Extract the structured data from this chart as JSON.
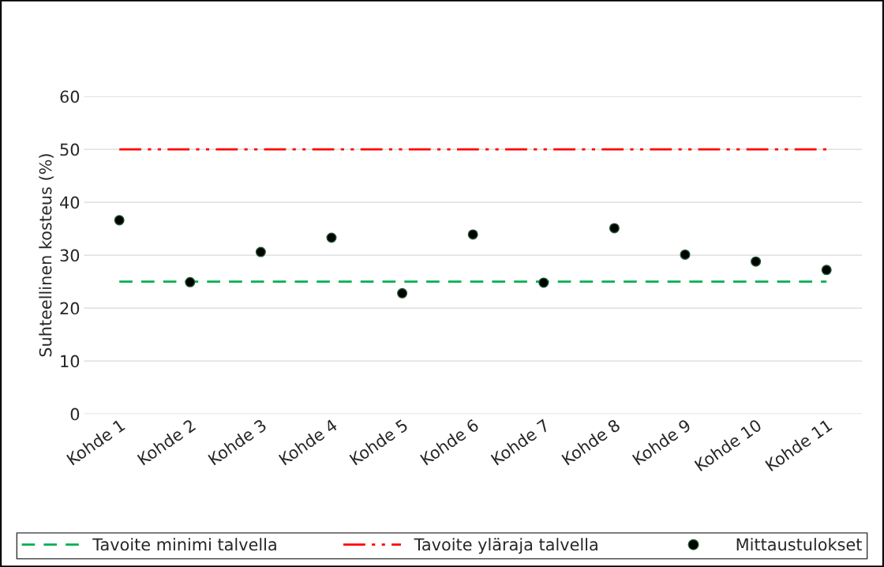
{
  "chart_data": {
    "type": "scatter",
    "ylabel": "Suhteellinen kosteus (%)",
    "categories": [
      "Kohde 1",
      "Kohde 2",
      "Kohde 3",
      "Kohde 4",
      "Kohde 5",
      "Kohde 6",
      "Kohde 7",
      "Kohde 8",
      "Kohde 9",
      "Kohde 10",
      "Kohde 11"
    ],
    "series": [
      {
        "name": "Tavoite minimi talvella",
        "type": "line",
        "color": "#00b050",
        "line_style": "dashed",
        "marker": "none",
        "values": [
          25,
          25,
          25,
          25,
          25,
          25,
          25,
          25,
          25,
          25,
          25
        ]
      },
      {
        "name": "Tavoite yläraja talvella",
        "type": "line",
        "color": "#ff0000",
        "line_style": "dashdotdot",
        "marker": "none",
        "values": [
          50,
          50,
          50,
          50,
          50,
          50,
          50,
          50,
          50,
          50,
          50
        ]
      },
      {
        "name": "Mittaustulokset",
        "color": "#000000",
        "marker": "circle",
        "values": [
          36.6,
          24.9,
          30.6,
          33.3,
          22.8,
          33.9,
          24.8,
          35.1,
          30.1,
          28.8,
          27.2
        ]
      }
    ],
    "ylim": [
      0,
      60
    ],
    "yticks": [
      0,
      10,
      20,
      30,
      40,
      50,
      60
    ],
    "grid": "y",
    "legend": "bottom"
  }
}
